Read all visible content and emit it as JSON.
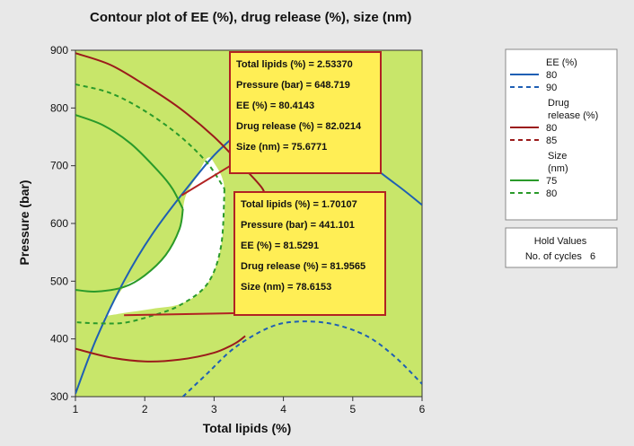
{
  "chart_data": {
    "type": "contour",
    "title": "Contour plot of EE (%), drug release (%), size (nm)",
    "xlabel": "Total lipids (%)",
    "ylabel": "Pressure (bar)",
    "xlim": [
      1,
      6
    ],
    "ylim": [
      300,
      900
    ],
    "xticks": [
      1,
      2,
      3,
      4,
      5,
      6
    ],
    "yticks": [
      300,
      400,
      500,
      600,
      700,
      800,
      900
    ],
    "colors": {
      "background": "#c8e66a",
      "feasible_region": "#ffffff",
      "ee": "#1f5fb4",
      "drug_release": "#9b1b1b",
      "size": "#2a9a2a",
      "tooltip_fill": "#ffee55",
      "tooltip_border": "#b22222"
    },
    "legend": {
      "position": "right",
      "groups": [
        {
          "title": [
            "EE (%)"
          ],
          "entries": [
            {
              "label": "80",
              "color": "#1f5fb4",
              "dashed": false
            },
            {
              "label": "90",
              "color": "#1f5fb4",
              "dashed": true
            }
          ]
        },
        {
          "title": [
            "Drug",
            "release (%)"
          ],
          "entries": [
            {
              "label": "80",
              "color": "#9b1b1b",
              "dashed": false
            },
            {
              "label": "85",
              "color": "#9b1b1b",
              "dashed": true
            }
          ]
        },
        {
          "title": [
            "Size",
            "(nm)"
          ],
          "entries": [
            {
              "label": "75",
              "color": "#2a9a2a",
              "dashed": false
            },
            {
              "label": "80",
              "color": "#2a9a2a",
              "dashed": true
            }
          ]
        }
      ]
    },
    "hold_values": {
      "title": "Hold Values",
      "line": "No. of cycles   6"
    },
    "series": [
      {
        "name": "EE (%) 80",
        "color": "#1f5fb4",
        "dashed": false,
        "x": [
          1.0,
          1.3,
          1.7,
          2.1,
          2.6,
          3.1,
          3.6,
          4.3,
          5.0,
          5.6,
          6.0
        ],
        "y": [
          305,
          400,
          500,
          580,
          660,
          730,
          770,
          755,
          720,
          670,
          632
        ]
      },
      {
        "name": "EE (%) 90",
        "color": "#1f5fb4",
        "dashed": true,
        "x": [
          2.55,
          2.9,
          3.3,
          3.8,
          4.2,
          4.7,
          5.2,
          5.6,
          6.0
        ],
        "y": [
          300,
          340,
          385,
          420,
          430,
          426,
          405,
          370,
          322
        ]
      },
      {
        "name": "Drug release (%) 80 (upper)",
        "color": "#9b1b1b",
        "dashed": false,
        "x": [
          1.0,
          1.5,
          2.0,
          2.5,
          3.0,
          3.4,
          3.7,
          3.72
        ],
        "y": [
          895,
          875,
          840,
          800,
          750,
          700,
          660,
          640
        ]
      },
      {
        "name": "Drug release (%) 80 (lower)",
        "color": "#9b1b1b",
        "dashed": false,
        "x": [
          1.0,
          1.5,
          2.0,
          2.5,
          3.0,
          3.3,
          3.45
        ],
        "y": [
          383,
          368,
          361,
          364,
          376,
          392,
          405
        ]
      },
      {
        "name": "Size (nm) 75 (upper)",
        "color": "#2a9a2a",
        "dashed": false,
        "x": [
          1.0,
          1.4,
          1.8,
          2.2,
          2.4,
          2.55
        ],
        "y": [
          788,
          770,
          738,
          690,
          660,
          625
        ]
      },
      {
        "name": "Size (nm) 75 (lower)",
        "color": "#2a9a2a",
        "dashed": false,
        "x": [
          2.55,
          2.5,
          2.3,
          2.0,
          1.7,
          1.3,
          1.0
        ],
        "y": [
          625,
          590,
          545,
          510,
          490,
          482,
          485
        ]
      },
      {
        "name": "Size (nm) 80 (upper)",
        "color": "#2a9a2a",
        "dashed": true,
        "x": [
          1.0,
          1.5,
          2.0,
          2.5,
          2.9,
          3.15
        ],
        "y": [
          841,
          826,
          795,
          752,
          705,
          660
        ]
      },
      {
        "name": "Size (nm) 80 (lower)",
        "color": "#2a9a2a",
        "dashed": true,
        "x": [
          3.15,
          3.1,
          2.9,
          2.5,
          2.1,
          1.7,
          1.3,
          1.0
        ],
        "y": [
          660,
          560,
          495,
          458,
          440,
          428,
          427,
          429
        ]
      }
    ],
    "feasible_region": {
      "x": [
        1.45,
        1.7,
        2.1,
        2.55,
        2.9,
        3.1,
        3.15,
        3.0,
        2.9,
        2.75,
        2.6,
        2.55,
        2.5,
        2.3,
        2.0,
        1.7,
        1.45
      ],
      "y": [
        440,
        445,
        452,
        462,
        495,
        560,
        660,
        705,
        713,
        682,
        650,
        625,
        590,
        545,
        510,
        490,
        440
      ]
    },
    "annotations": [
      {
        "lines": [
          "Total  lipids (%) = 2.53370",
          "Pressure (bar) = 648.719",
          "EE (%) = 80.4143",
          "Drug  release (%) = 82.0214",
          "Size (nm) = 75.6771"
        ],
        "point": [
          2.5337,
          648.719
        ]
      },
      {
        "lines": [
          "Total  lipids (%) = 1.70107",
          "Pressure (bar) = 441.101",
          "EE (%) = 81.5291",
          "Drug  release (%) = 81.9565",
          "Size (nm) = 78.6153"
        ],
        "point": [
          1.70107,
          441.101
        ]
      }
    ]
  }
}
